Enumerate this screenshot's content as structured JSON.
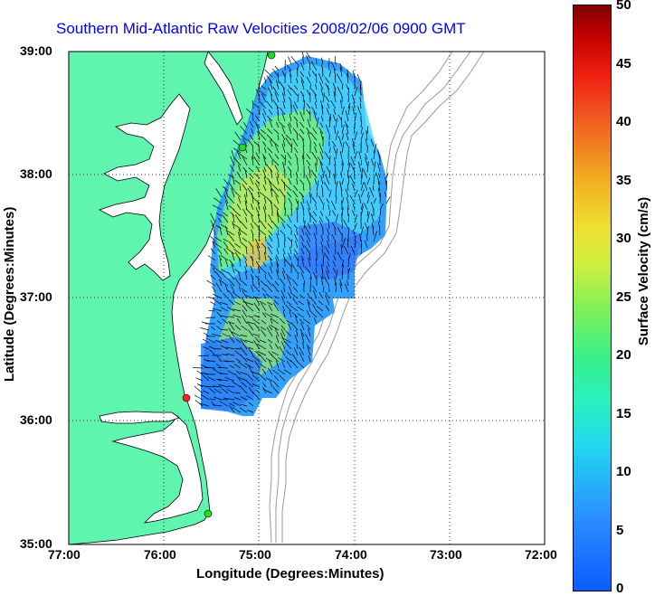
{
  "map": {
    "title": "Southern Mid-Atlantic Raw Velocities 2008/02/06 0900 GMT",
    "x_axis_label": "Longitude (Degrees:Minutes)",
    "y_axis_label": "Latitude (Degrees:Minutes)",
    "x_ticks": [
      "77:00",
      "76:00",
      "75:00",
      "74:00",
      "73:00",
      "72:00"
    ],
    "y_ticks": [
      "39:00",
      "38:00",
      "37:00",
      "36:00",
      "35:00"
    ],
    "colors": {
      "land": "#5ff5ae",
      "coastline": "#000000",
      "bathymetry": "#999999",
      "grid": "#000000",
      "arrows": "#000000",
      "title": "#0000ff",
      "station_green": "#22dd22",
      "station_red": "#ff2020"
    }
  },
  "colorbar": {
    "title": "Surface Velocity (cm/s)",
    "ticks": [
      "50",
      "45",
      "40",
      "35",
      "30",
      "25",
      "20",
      "15",
      "10",
      "5",
      "0"
    ],
    "range": [
      0,
      50
    ]
  }
}
